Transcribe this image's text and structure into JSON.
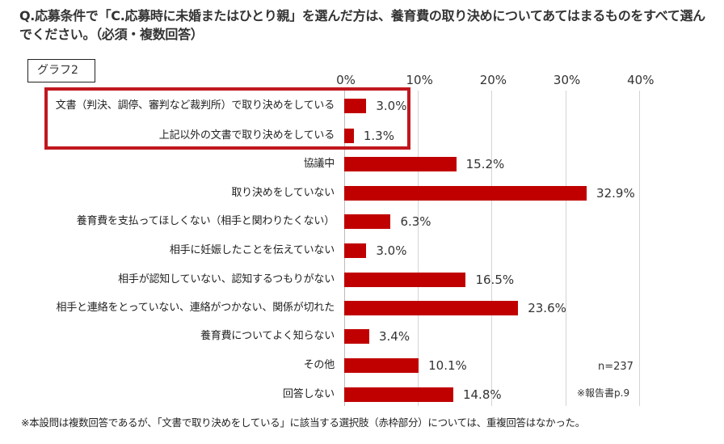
{
  "title": "Q.応募条件で「C.応募時に未婚またはひとり親」を選んだ方は、養育費の取り決めについてあてはまるものをすべて選んでください。（必須・複数回答）",
  "graph_tag": "グラフ2",
  "axis": {
    "ticks": [
      "0%",
      "10%",
      "20%",
      "30%",
      "40%"
    ]
  },
  "rows": [
    {
      "label": "文書（判決、調停、審判など裁判所）で取り決めをしている",
      "value": 3.0,
      "value_label": "3.0%"
    },
    {
      "label": "上記以外の文書で取り決めをしている",
      "value": 1.3,
      "value_label": "1.3%"
    },
    {
      "label": "協議中",
      "value": 15.2,
      "value_label": "15.2%"
    },
    {
      "label": "取り決めをしていない",
      "value": 32.9,
      "value_label": "32.9%"
    },
    {
      "label": "養育費を支払ってほしくない（相手と関わりたくない）",
      "value": 6.3,
      "value_label": "6.3%"
    },
    {
      "label": "相手に妊娠したことを伝えていない",
      "value": 3.0,
      "value_label": "3.0%"
    },
    {
      "label": "相手が認知していない、認知するつもりがない",
      "value": 16.5,
      "value_label": "16.5%"
    },
    {
      "label": "相手と連絡をとっていない、連絡がつかない、関係が切れた",
      "value": 23.6,
      "value_label": "23.6%"
    },
    {
      "label": "養育費についてよく知らない",
      "value": 3.4,
      "value_label": "3.4%"
    },
    {
      "label": "その他",
      "value": 10.1,
      "value_label": "10.1%"
    },
    {
      "label": "回答しない",
      "value": 14.8,
      "value_label": "14.8%"
    }
  ],
  "n_note": "n=237",
  "source_note": "※報告書p.9",
  "footnote": "※本設問は複数回答であるが、「文書で取り決めをしている」に該当する選択肢（赤枠部分）については、重複回答はなかった。",
  "colors": {
    "bar": "#c00000",
    "highlight_frame": "#c0171f"
  },
  "chart_data": {
    "type": "bar",
    "orientation": "horizontal",
    "title": "Q.応募条件で「C.応募時に未婚またはひとり親」を選んだ方は、養育費の取り決めについてあてはまるものをすべて選んでください。（必須・複数回答）",
    "subtitle": "グラフ2",
    "categories": [
      "文書（判決、調停、審判など裁判所）で取り決めをしている",
      "上記以外の文書で取り決めをしている",
      "協議中",
      "取り決めをしていない",
      "養育費を支払ってほしくない（相手と関わりたくない）",
      "相手に妊娠したことを伝えていない",
      "相手が認知していない、認知するつもりがない",
      "相手と連絡をとっていない、連絡がつかない、関係が切れた",
      "養育費についてよく知らない",
      "その他",
      "回答しない"
    ],
    "values": [
      3.0,
      1.3,
      15.2,
      32.9,
      6.3,
      3.0,
      16.5,
      23.6,
      3.4,
      10.1,
      14.8
    ],
    "xlabel": "",
    "ylabel": "",
    "xlim": [
      0,
      40
    ],
    "xticks": [
      "0%",
      "10%",
      "20%",
      "30%",
      "40%"
    ],
    "grid": true,
    "data_labels": true,
    "annotations": [
      "n=237",
      "※報告書p.9",
      "赤枠: 文書で取り決めをしている (top 2 categories)",
      "※本設問は複数回答であるが、「文書で取り決めをしている」に該当する選択肢（赤枠部分）については、重複回答はなかった。"
    ]
  }
}
